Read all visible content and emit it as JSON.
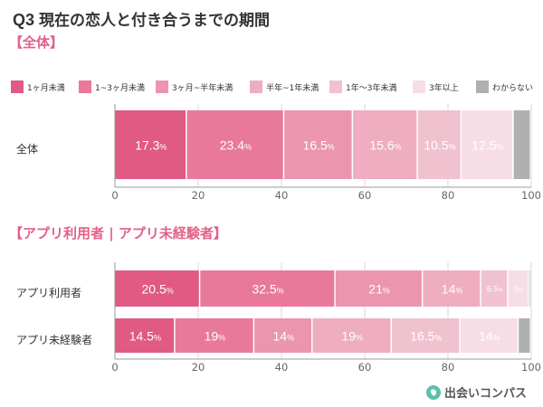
{
  "header": {
    "q": "Q3",
    "title": "現在の恋人と付き合うまでの期間"
  },
  "sections": {
    "overall": "【全体】",
    "byApp": "【アプリ利用者 | アプリ未経験者】"
  },
  "colors": [
    "#e05a83",
    "#e8799a",
    "#eb96ae",
    "#eeadc0",
    "#f0c1cf",
    "#f7dde5",
    "#b0b0b0"
  ],
  "legend": [
    "1ヶ月未満",
    "1~3ヶ月未満",
    "3ヶ月~半年未満",
    "半年~1年未満",
    "1年〜3年未満",
    "3年以上",
    "わからない"
  ],
  "brand": {
    "name": "出会いコンパス"
  },
  "chart_data": [
    {
      "type": "bar",
      "orientation": "horizontal",
      "stacked": true,
      "categories": [
        "全体"
      ],
      "series": [
        {
          "name": "1ヶ月未満",
          "values": [
            17.3
          ]
        },
        {
          "name": "1~3ヶ月未満",
          "values": [
            23.4
          ]
        },
        {
          "name": "3ヶ月~半年未満",
          "values": [
            16.5
          ]
        },
        {
          "name": "半年~1年未満",
          "values": [
            15.6
          ]
        },
        {
          "name": "1年〜3年未満",
          "values": [
            10.5
          ]
        },
        {
          "name": "3年以上",
          "values": [
            12.5
          ]
        },
        {
          "name": "わからない",
          "values": [
            4.2
          ]
        }
      ],
      "value_labels": [
        [
          "17.3",
          "23.4",
          "16.5",
          "15.6",
          "10.5",
          "12.5",
          ""
        ]
      ],
      "unit": "%",
      "xlim": [
        0,
        100
      ],
      "xticks": [
        "0",
        "20",
        "40",
        "60",
        "80",
        "100"
      ]
    },
    {
      "type": "bar",
      "orientation": "horizontal",
      "stacked": true,
      "categories": [
        "アプリ利用者",
        "アプリ未経験者"
      ],
      "series": [
        {
          "name": "1ヶ月未満",
          "values": [
            20.5,
            14.5
          ]
        },
        {
          "name": "1~3ヶ月未満",
          "values": [
            32.5,
            19
          ]
        },
        {
          "name": "3ヶ月~半年未満",
          "values": [
            21,
            14
          ]
        },
        {
          "name": "半年~1年未満",
          "values": [
            14,
            19
          ]
        },
        {
          "name": "1年〜3年未満",
          "values": [
            6.5,
            16.5
          ]
        },
        {
          "name": "3年以上",
          "values": [
            5,
            14
          ]
        },
        {
          "name": "わからない",
          "values": [
            0.5,
            3
          ]
        }
      ],
      "value_labels": [
        [
          "20.5",
          "32.5",
          "21",
          "14",
          "6.5",
          "5",
          ""
        ],
        [
          "14.5",
          "19",
          "14",
          "19",
          "16.5",
          "14",
          ""
        ]
      ],
      "unit": "%",
      "xlim": [
        0,
        100
      ],
      "xticks": [
        "0",
        "20",
        "40",
        "60",
        "80",
        "100"
      ]
    }
  ]
}
